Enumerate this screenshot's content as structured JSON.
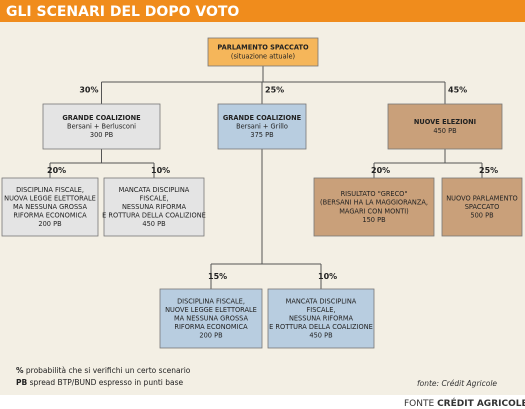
{
  "header": {
    "title": "GLI SCENARI DEL DOPO VOTO"
  },
  "nodes": [
    {
      "lines": [
        "PARLAMENTO SPACCATO",
        "(situazione attuale)"
      ]
    },
    {
      "probability": "30%",
      "lines": [
        "GRANDE COALIZIONE",
        "Bersani + Berlusconi",
        "300 PB"
      ]
    },
    {
      "probability": "25%",
      "lines": [
        "GRANDE COALIZIONE",
        "Bersani + Grillo",
        "375 PB"
      ]
    },
    {
      "probability": "45%",
      "lines": [
        "NUOVE ELEZIONI",
        "450 PB"
      ]
    },
    {
      "probability": "20%",
      "lines": [
        "DISCIPLINA FISCALE,",
        "NUOVA LEGGE ELETTORALE",
        "MA NESSUNA GROSSA",
        "RIFORMA ECONOMICA",
        "200 PB"
      ]
    },
    {
      "probability": "10%",
      "lines": [
        "MANCATA DISCIPLINA",
        "FISCALE,",
        "NESSUNA RIFORMA",
        "E ROTTURA DELLA COALIZIONE",
        "450 PB"
      ]
    },
    {
      "probability": "20%",
      "lines": [
        "RISULTATO \"GRECO\"",
        "(BERSANI HA LA MAGGIORANZA,",
        "MAGARI CON MONTI)",
        "150 PB"
      ]
    },
    {
      "probability": "25%",
      "lines": [
        "NUOVO PARLAMENTO",
        "SPACCATO",
        "500 PB"
      ]
    },
    {
      "probability": "15%",
      "lines": [
        "DISCIPLINA FISCALE,",
        "NUOVE LEGGE ELETTORALE",
        "MA NESSUNA GROSSA",
        "RIFORMA ECONOMICA",
        "200 PB"
      ]
    },
    {
      "probability": "10%",
      "lines": [
        "MANCATA DISCIPLINA",
        "FISCALE,",
        "NESSUNA RIFORMA",
        "E ROTTURA DELLA COALIZIONE",
        "450 PB"
      ]
    }
  ],
  "legend": [
    {
      "key": "%",
      "text": "probabilità che si verifichi un certo scenario"
    },
    {
      "key": "PB",
      "text": "spread BTP/BUND espresso in punti base"
    }
  ],
  "source": "fonte: Crédit Agricole",
  "footer": {
    "label": "FONTE",
    "value": "CRÉDIT AGRICOLE"
  }
}
